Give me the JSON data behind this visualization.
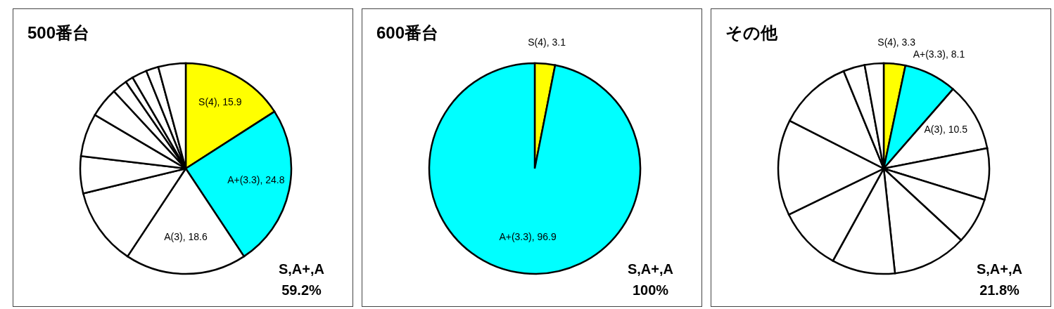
{
  "chart_data": [
    {
      "type": "pie",
      "title": "500番台",
      "categories": [
        "S(4)",
        "A+(3.3)",
        "A(3)",
        null,
        null,
        null,
        null,
        null,
        null,
        null,
        null,
        null
      ],
      "values": [
        15.9,
        24.8,
        18.6,
        11.9,
        5.7,
        6.6,
        4.6,
        2.3,
        1.2,
        2.3,
        1.9,
        4.2
      ],
      "colors": [
        "#ffff00",
        "#00ffff",
        "#ffffff",
        "#ffffff",
        "#ffffff",
        "#ffffff",
        "#ffffff",
        "#ffffff",
        "#ffffff",
        "#ffffff",
        "#ffffff",
        "#ffffff"
      ],
      "value_labels": [
        "15.9",
        "24.8",
        "18.6",
        null,
        null,
        null,
        null,
        null,
        null,
        null,
        null,
        null
      ],
      "annotations": [
        "S,A+,A",
        "59.2%"
      ]
    },
    {
      "type": "pie",
      "title": "600番台",
      "categories": [
        "S(4)",
        "A+(3.3)"
      ],
      "values": [
        3.1,
        96.9
      ],
      "colors": [
        "#ffff00",
        "#00ffff"
      ],
      "value_labels": [
        "3.1",
        "96.9"
      ],
      "annotations": [
        "S,A+,A",
        "100%"
      ]
    },
    {
      "type": "pie",
      "title": "その他",
      "categories": [
        "S(4)",
        "A+(3.3)",
        "A(3)",
        null,
        null,
        null,
        null,
        null,
        null,
        null,
        null,
        null
      ],
      "values": [
        3.3,
        8.1,
        10.5,
        7.9,
        7.1,
        11.4,
        9.7,
        9.8,
        14.7,
        11.3,
        3.3,
        2.9
      ],
      "colors": [
        "#ffff00",
        "#00ffff",
        "#ffffff",
        "#ffffff",
        "#ffffff",
        "#ffffff",
        "#ffffff",
        "#ffffff",
        "#ffffff",
        "#ffffff",
        "#ffffff",
        "#ffffff"
      ],
      "value_labels": [
        "3.3",
        "8.1",
        "10.5",
        null,
        null,
        null,
        null,
        null,
        null,
        null,
        null,
        null
      ],
      "annotations": [
        "S,A+,A",
        "21.8%"
      ]
    }
  ]
}
